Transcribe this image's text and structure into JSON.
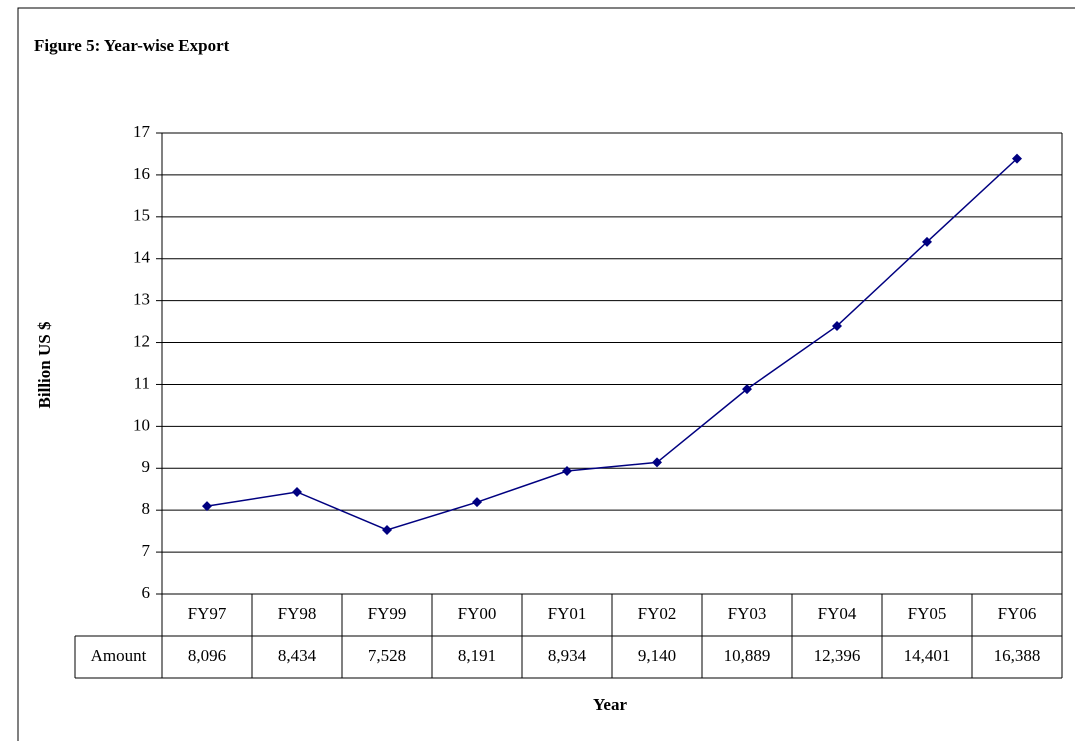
{
  "chart_data": {
    "type": "line",
    "title": "Figure 5: Year-wise Export",
    "y_label": "Billion US $",
    "x_label": "Year",
    "categories": [
      "FY97",
      "FY98",
      "FY99",
      "FY00",
      "FY01",
      "FY02",
      "FY03",
      "FY04",
      "FY05",
      "FY06"
    ],
    "series": [
      {
        "name": "Amount",
        "color": "#000080",
        "values": [
          8.096,
          8.434,
          7.528,
          8.191,
          8.934,
          9.14,
          10.889,
          12.396,
          14.401,
          16.388
        ],
        "value_labels": [
          "8,096",
          "8,434",
          "7,528",
          "8,191",
          "8,934",
          "9,140",
          "10,889",
          "12,396",
          "14,401",
          "16,388"
        ]
      }
    ],
    "ylim": [
      6,
      17
    ],
    "yticks": [
      6,
      7,
      8,
      9,
      10,
      11,
      12,
      13,
      14,
      15,
      16,
      17
    ],
    "grid": true
  }
}
